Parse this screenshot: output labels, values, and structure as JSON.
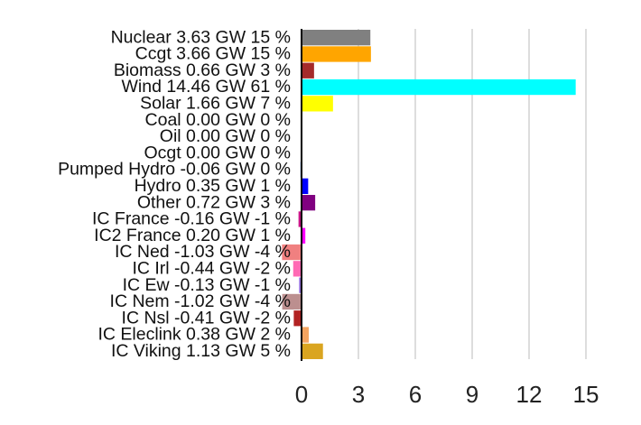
{
  "chart_data": {
    "type": "bar",
    "orientation": "horizontal",
    "categories": [
      "Nuclear",
      "Ccgt",
      "Biomass",
      "Wind",
      "Solar",
      "Coal",
      "Oil",
      "Ocgt",
      "Pumped Hydro",
      "Hydro",
      "Other",
      "IC France",
      "IC2 France",
      "IC Ned",
      "IC Irl",
      "IC Ew",
      "IC Nem",
      "IC Nsl",
      "IC Eleclink",
      "IC Viking"
    ],
    "labels": [
      "Nuclear 3.63 GW 15 %",
      "Ccgt 3.66 GW 15 %",
      "Biomass 0.66 GW 3 %",
      "Wind 14.46 GW 61 %",
      "Solar 1.66 GW 7 %",
      "Coal 0.00 GW 0 %",
      "Oil 0.00 GW 0 %",
      "Ocgt 0.00 GW 0 %",
      "Pumped Hydro -0.06 GW 0 %",
      "Hydro 0.35 GW 1 %",
      "Other 0.72 GW 3 %",
      "IC France -0.16 GW -1 %",
      "IC2 France 0.20 GW 1 %",
      "IC Ned -1.03 GW -4 %",
      "IC Irl -0.44 GW -2 %",
      "IC Ew -0.13 GW -1 %",
      "IC Nem -1.02 GW -4 %",
      "IC Nsl -0.41 GW -2 %",
      "IC Eleclink 0.38 GW 2 %",
      "IC Viking 1.13 GW 5 %"
    ],
    "values": [
      3.63,
      3.66,
      0.66,
      14.46,
      1.66,
      0,
      0,
      0,
      -0.06,
      0.35,
      0.72,
      -0.16,
      0.2,
      -1.03,
      -0.44,
      -0.13,
      -1.02,
      -0.41,
      0.38,
      1.13
    ],
    "colors": [
      "#808080",
      "#FFA500",
      "#A52A2A",
      "#00FFFF",
      "#FFFF00",
      "#000000",
      "#333333",
      "#999999",
      "#6495ED",
      "#0000FF",
      "#800080",
      "#C71585",
      "#FF00FF",
      "#F08080",
      "#FF69B4",
      "#9370DB",
      "#BC8F8F",
      "#B22222",
      "#F4A460",
      "#DAA520"
    ],
    "xticks": [
      "0",
      "3",
      "6",
      "9",
      "12",
      "15"
    ],
    "xlim": [
      -1.1,
      16.5
    ],
    "grid": true,
    "title": "",
    "xlabel": "",
    "ylabel": ""
  }
}
